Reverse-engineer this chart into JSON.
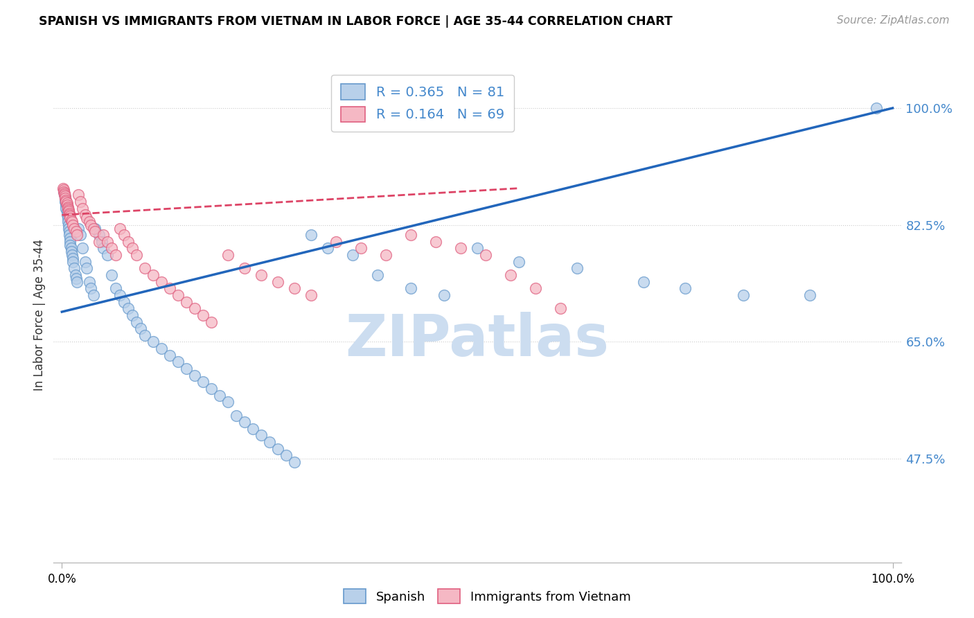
{
  "title": "SPANISH VS IMMIGRANTS FROM VIETNAM IN LABOR FORCE | AGE 35-44 CORRELATION CHART",
  "source": "Source: ZipAtlas.com",
  "ylabel": "In Labor Force | Age 35-44",
  "xlim": [
    -0.01,
    1.01
  ],
  "ylim": [
    0.32,
    1.06
  ],
  "yticks": [
    0.475,
    0.65,
    0.825,
    1.0
  ],
  "ytick_labels": [
    "47.5%",
    "65.0%",
    "82.5%",
    "100.0%"
  ],
  "xtick_labels": [
    "0.0%",
    "100.0%"
  ],
  "legend_R_blue": "R = 0.365",
  "legend_N_blue": "N = 81",
  "legend_R_pink": "R = 0.164",
  "legend_N_pink": "N = 69",
  "blue_color": "#b8d0ea",
  "pink_color": "#f5b8c4",
  "blue_edge_color": "#6699cc",
  "pink_edge_color": "#e06080",
  "blue_line_color": "#2266bb",
  "pink_line_color": "#dd4466",
  "watermark_color": "#ccddf0",
  "blue_scatter_x": [
    0.002,
    0.003,
    0.004,
    0.004,
    0.005,
    0.005,
    0.005,
    0.006,
    0.006,
    0.007,
    0.007,
    0.008,
    0.008,
    0.009,
    0.009,
    0.01,
    0.01,
    0.01,
    0.011,
    0.011,
    0.012,
    0.013,
    0.013,
    0.015,
    0.016,
    0.017,
    0.018,
    0.02,
    0.022,
    0.025,
    0.028,
    0.03,
    0.033,
    0.035,
    0.038,
    0.04,
    0.045,
    0.048,
    0.05,
    0.055,
    0.06,
    0.065,
    0.07,
    0.075,
    0.08,
    0.085,
    0.09,
    0.095,
    0.1,
    0.11,
    0.12,
    0.13,
    0.14,
    0.15,
    0.16,
    0.17,
    0.18,
    0.19,
    0.2,
    0.21,
    0.22,
    0.23,
    0.24,
    0.25,
    0.26,
    0.27,
    0.28,
    0.3,
    0.32,
    0.35,
    0.38,
    0.42,
    0.46,
    0.5,
    0.55,
    0.62,
    0.7,
    0.75,
    0.82,
    0.9,
    0.98
  ],
  "blue_scatter_y": [
    0.875,
    0.87,
    0.865,
    0.86,
    0.858,
    0.855,
    0.85,
    0.845,
    0.84,
    0.835,
    0.83,
    0.825,
    0.82,
    0.815,
    0.81,
    0.805,
    0.8,
    0.795,
    0.79,
    0.785,
    0.78,
    0.775,
    0.77,
    0.76,
    0.75,
    0.745,
    0.74,
    0.82,
    0.81,
    0.79,
    0.77,
    0.76,
    0.74,
    0.73,
    0.72,
    0.82,
    0.81,
    0.8,
    0.79,
    0.78,
    0.75,
    0.73,
    0.72,
    0.71,
    0.7,
    0.69,
    0.68,
    0.67,
    0.66,
    0.65,
    0.64,
    0.63,
    0.62,
    0.61,
    0.6,
    0.59,
    0.58,
    0.57,
    0.56,
    0.54,
    0.53,
    0.52,
    0.51,
    0.5,
    0.49,
    0.48,
    0.47,
    0.81,
    0.79,
    0.78,
    0.75,
    0.73,
    0.72,
    0.79,
    0.77,
    0.76,
    0.74,
    0.73,
    0.72,
    0.72,
    1.0
  ],
  "pink_scatter_x": [
    0.001,
    0.002,
    0.002,
    0.003,
    0.003,
    0.004,
    0.004,
    0.005,
    0.005,
    0.006,
    0.006,
    0.007,
    0.007,
    0.008,
    0.008,
    0.009,
    0.009,
    0.01,
    0.01,
    0.011,
    0.012,
    0.013,
    0.015,
    0.017,
    0.018,
    0.02,
    0.022,
    0.025,
    0.028,
    0.03,
    0.033,
    0.035,
    0.038,
    0.04,
    0.045,
    0.05,
    0.055,
    0.06,
    0.065,
    0.07,
    0.075,
    0.08,
    0.085,
    0.09,
    0.1,
    0.11,
    0.12,
    0.13,
    0.14,
    0.15,
    0.16,
    0.17,
    0.18,
    0.2,
    0.22,
    0.24,
    0.26,
    0.28,
    0.3,
    0.33,
    0.36,
    0.39,
    0.42,
    0.45,
    0.48,
    0.51,
    0.54,
    0.57,
    0.6
  ],
  "pink_scatter_y": [
    0.88,
    0.878,
    0.875,
    0.872,
    0.87,
    0.868,
    0.865,
    0.862,
    0.86,
    0.858,
    0.855,
    0.852,
    0.85,
    0.848,
    0.845,
    0.842,
    0.84,
    0.838,
    0.835,
    0.832,
    0.83,
    0.825,
    0.82,
    0.815,
    0.81,
    0.87,
    0.86,
    0.85,
    0.84,
    0.835,
    0.83,
    0.825,
    0.82,
    0.815,
    0.8,
    0.81,
    0.8,
    0.79,
    0.78,
    0.82,
    0.81,
    0.8,
    0.79,
    0.78,
    0.76,
    0.75,
    0.74,
    0.73,
    0.72,
    0.71,
    0.7,
    0.69,
    0.68,
    0.78,
    0.76,
    0.75,
    0.74,
    0.73,
    0.72,
    0.8,
    0.79,
    0.78,
    0.81,
    0.8,
    0.79,
    0.78,
    0.75,
    0.73,
    0.7
  ],
  "blue_line_x0": 0.0,
  "blue_line_y0": 0.695,
  "blue_line_x1": 1.0,
  "blue_line_y1": 1.0,
  "pink_line_x0": 0.0,
  "pink_line_y0": 0.84,
  "pink_line_x1": 0.55,
  "pink_line_y1": 0.88
}
